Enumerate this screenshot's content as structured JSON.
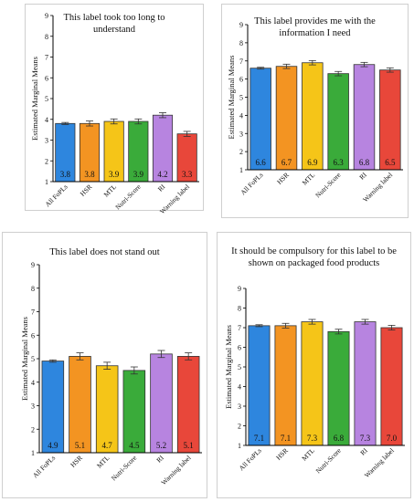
{
  "chart_data": [
    {
      "type": "bar",
      "title": "This label took too long to understand",
      "ylabel": "Estimated Marginal Means",
      "ylim": [
        1,
        9
      ],
      "categories": [
        "All FoPLs",
        "HSR",
        "MTL",
        "Nutri-Score",
        "RI",
        "Warning label"
      ],
      "values": [
        3.8,
        3.8,
        3.9,
        3.9,
        4.2,
        3.3
      ],
      "errors": [
        0.05,
        0.12,
        0.12,
        0.12,
        0.12,
        0.12
      ],
      "value_labels": [
        "3.8",
        "3.8",
        "3.9",
        "3.9",
        "4.2",
        "3.3"
      ]
    },
    {
      "type": "bar",
      "title": "This label provides me with the information I need",
      "ylabel": "Estimated Marginal Means",
      "ylim": [
        1,
        9
      ],
      "categories": [
        "All FoPLs",
        "HSR",
        "MTL",
        "Nutri-Score",
        "RI",
        "Warning label"
      ],
      "values": [
        6.6,
        6.7,
        6.9,
        6.3,
        6.8,
        6.5
      ],
      "errors": [
        0.05,
        0.12,
        0.12,
        0.12,
        0.12,
        0.12
      ],
      "value_labels": [
        "6.6",
        "6.7",
        "6.9",
        "6.3",
        "6.8",
        "6.5"
      ]
    },
    {
      "type": "bar",
      "title": "This label does not stand out",
      "ylabel": "Estimated Marginal Means",
      "ylim": [
        1,
        9
      ],
      "categories": [
        "All FoPLs",
        "HSR",
        "MTL",
        "Nutri-Score",
        "RI",
        "Warning label"
      ],
      "values": [
        4.9,
        5.1,
        4.7,
        4.5,
        5.2,
        5.1
      ],
      "errors": [
        0.05,
        0.15,
        0.15,
        0.15,
        0.15,
        0.15
      ],
      "value_labels": [
        "4.9",
        "5.1",
        "4.7",
        "4.5",
        "5.2",
        "5.1"
      ]
    },
    {
      "type": "bar",
      "title": "It should be compulsory for this label to be shown on packaged food products",
      "ylabel": "Estimated Marginal Means",
      "ylim": [
        1,
        9
      ],
      "categories": [
        "All FoPLs",
        "HSR",
        "MTL",
        "Nutri-Score",
        "RI",
        "Warning label"
      ],
      "values": [
        7.1,
        7.1,
        7.3,
        6.8,
        7.3,
        7.0
      ],
      "errors": [
        0.05,
        0.12,
        0.12,
        0.12,
        0.12,
        0.12
      ],
      "value_labels": [
        "7.1",
        "7.1",
        "7.3",
        "6.8",
        "7.3",
        "7.0"
      ]
    }
  ],
  "colors": {
    "bars": [
      "#2e86de",
      "#f39422",
      "#f5c518",
      "#3aab3a",
      "#b784e0",
      "#e8473a"
    ],
    "bar_stroke": "#333333",
    "axis": "#000000"
  }
}
